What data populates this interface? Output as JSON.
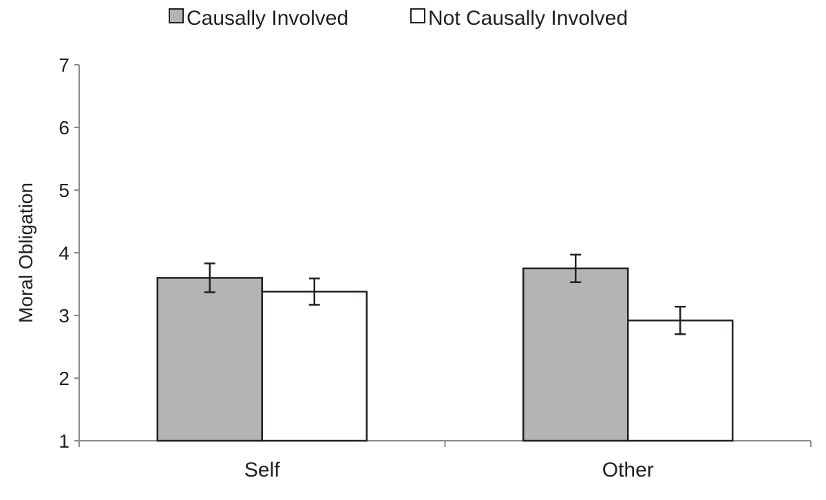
{
  "chart_data": {
    "type": "bar",
    "title": "",
    "xlabel": "",
    "ylabel": "Moral Obligation",
    "ylim": [
      1,
      7
    ],
    "yticks": [
      "1",
      "2",
      "3",
      "4",
      "5",
      "6",
      "7"
    ],
    "categories": [
      "Self",
      "Other"
    ],
    "legend_position": "top",
    "grid": false,
    "series": [
      {
        "name": "Causally Involved",
        "color": "#b3b4b6",
        "values": [
          3.6,
          3.75
        ],
        "errors": [
          0.23,
          0.22
        ]
      },
      {
        "name": "Not Causally Involved",
        "color": "#ffffff",
        "values": [
          3.38,
          2.92
        ],
        "errors": [
          0.21,
          0.22
        ]
      }
    ]
  }
}
